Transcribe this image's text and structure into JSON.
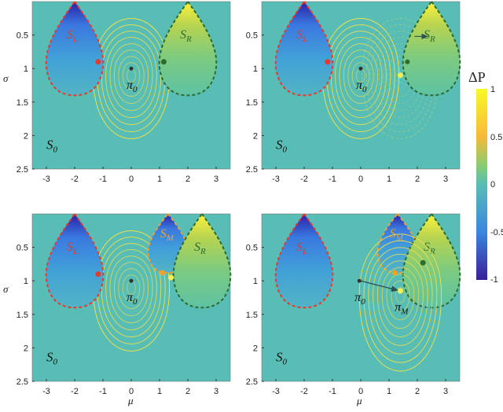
{
  "chart_data": {
    "type": "heatmap",
    "xlabel": "μ",
    "ylabel": "σ",
    "xlim": [
      -3.5,
      3.5
    ],
    "ylim": [
      2.5,
      0
    ],
    "xticks": [
      "-3",
      "-2",
      "-1",
      "0",
      "1",
      "2",
      "3"
    ],
    "yticks": [
      "0.5",
      "1",
      "1.5",
      "2",
      "2.5"
    ],
    "colorbar": {
      "title": "ΔP",
      "range": [
        -1,
        1
      ],
      "ticks": [
        "1",
        "0.5",
        "0",
        "-0.5",
        "-1"
      ]
    },
    "panels": [
      {
        "regions": [
          {
            "label": "S",
            "sub": "L",
            "mu": -2
          },
          {
            "label": "S",
            "sub": "R",
            "mu": 2
          }
        ],
        "background": {
          "label": "S",
          "sub": "0"
        },
        "point": {
          "label": "π",
          "sub": "0",
          "mu": 0,
          "sigma": 1
        },
        "contour_center": [
          0,
          1.1
        ]
      },
      {
        "regions": [
          {
            "label": "S",
            "sub": "L",
            "mu": -2
          },
          {
            "label": "S",
            "sub": "R",
            "mu": 2.5
          }
        ],
        "background": {
          "label": "S",
          "sub": "0"
        },
        "point": {
          "label": "π",
          "sub": "0",
          "mu": 0,
          "sigma": 1
        },
        "contour_center": [
          0,
          1.1
        ]
      },
      {
        "regions": [
          {
            "label": "S",
            "sub": "L",
            "mu": -2
          },
          {
            "label": "S",
            "sub": "M",
            "mu": 1.3
          },
          {
            "label": "S",
            "sub": "R",
            "mu": 2.5
          }
        ],
        "background": {
          "label": "S",
          "sub": "0"
        },
        "point": {
          "label": "π",
          "sub": "0",
          "mu": 0,
          "sigma": 1
        },
        "contour_center": [
          0,
          1.1
        ]
      },
      {
        "regions": [
          {
            "label": "S",
            "sub": "L",
            "mu": -2
          },
          {
            "label": "S",
            "sub": "M",
            "mu": 1.3
          },
          {
            "label": "S",
            "sub": "R",
            "mu": 2.5
          }
        ],
        "background": {
          "label": "S",
          "sub": "0"
        },
        "point": {
          "label": "π",
          "sub": "0",
          "mu": 0,
          "sigma": 1
        },
        "point2": {
          "label": "π",
          "sub": "M",
          "mu": 1.4,
          "sigma": 1.15
        },
        "contour_center": [
          1.4,
          1.2
        ]
      }
    ]
  },
  "colors": {
    "background": "#58bdb5",
    "left": "#e8392a",
    "right": "#2d6b2e",
    "middle": "#f0a030",
    "contour": "#f2e04a"
  }
}
